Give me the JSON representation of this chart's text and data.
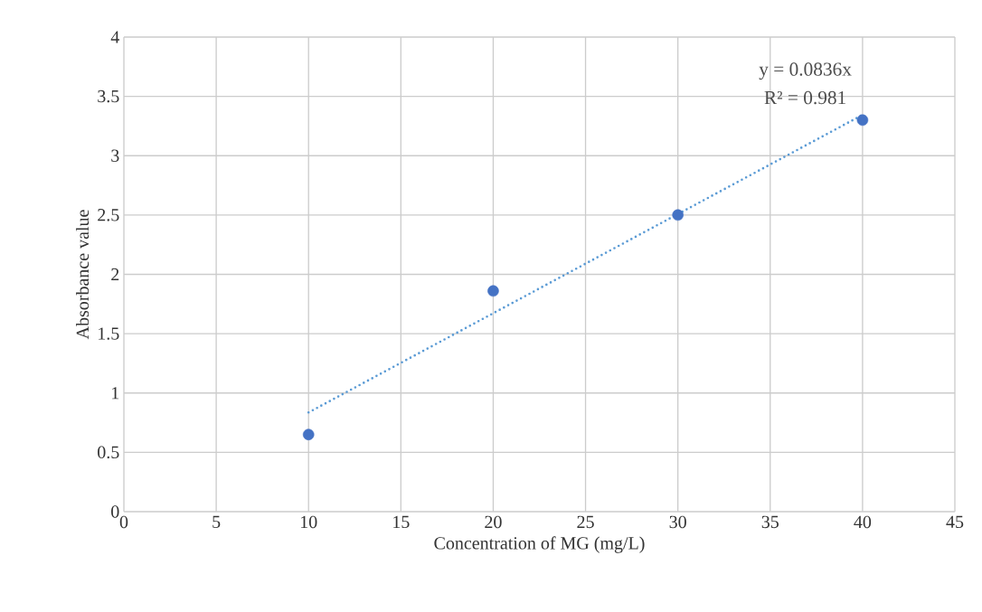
{
  "chart_data": {
    "type": "scatter",
    "xlabel": "Concentration of MG (mg/L)",
    "ylabel": "Absorbance value",
    "xlim": [
      0,
      45
    ],
    "xticks": [
      0,
      5,
      10,
      15,
      20,
      25,
      30,
      35,
      40,
      45
    ],
    "ylim": [
      0,
      4
    ],
    "yticks": [
      0,
      0.5,
      1,
      1.5,
      2,
      2.5,
      3,
      3.5,
      4
    ],
    "grid": true,
    "marker": "circle",
    "series": [
      {
        "color": "#4472c4",
        "x": [
          10,
          20,
          30,
          40
        ],
        "values": [
          0.65,
          1.86,
          2.5,
          3.3
        ]
      },
      {
        "type": "line",
        "color": "#5b9bd5",
        "line_style": "dotted",
        "marker": "none",
        "x": [
          10,
          40
        ],
        "values": [
          0.836,
          3.344
        ]
      }
    ],
    "annotations": [
      "y = 0.0836x",
      "R² = 0.981"
    ]
  }
}
